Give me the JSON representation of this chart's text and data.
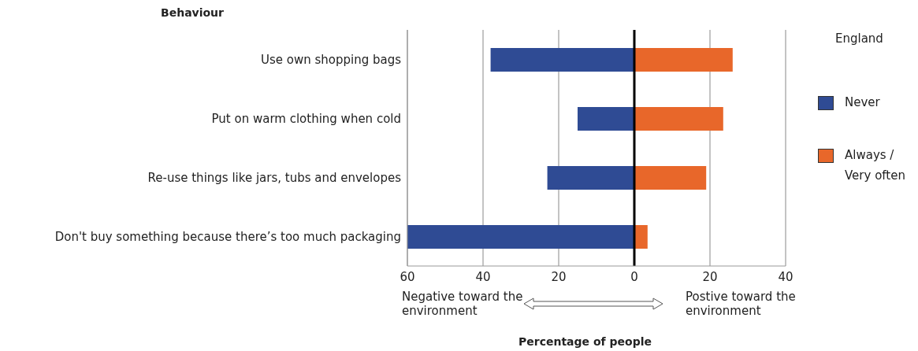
{
  "chart_data": {
    "type": "bar",
    "orientation": "horizontal",
    "stacked": true,
    "ylabel": "Behaviour",
    "xlabel": "Percentage of people",
    "legend_title": "England",
    "categories": [
      "Use own shopping bags",
      "Put on warm clothing when cold",
      "Re-use things like jars, tubs and envelopes",
      "Don't buy something because there’s too much packaging"
    ],
    "series": [
      {
        "name": "Never",
        "color": "#2f4b94",
        "values": [
          -38,
          -15,
          -23,
          -60
        ]
      },
      {
        "name": "Always / Very often",
        "color": "#e8672a",
        "values": [
          26,
          23.5,
          19,
          3.5
        ]
      }
    ],
    "xlim": [
      -60,
      40
    ],
    "xticks": [
      {
        "value": -60,
        "label": "60"
      },
      {
        "value": -40,
        "label": "40"
      },
      {
        "value": -20,
        "label": "20"
      },
      0,
      20,
      40
    ],
    "ref_lines": [
      {
        "axis": "x",
        "value": 0,
        "color": "#000000"
      }
    ],
    "grid": "x",
    "legend": "right",
    "annotations": [
      "Negative toward the environment",
      "Postive toward the environment"
    ]
  }
}
